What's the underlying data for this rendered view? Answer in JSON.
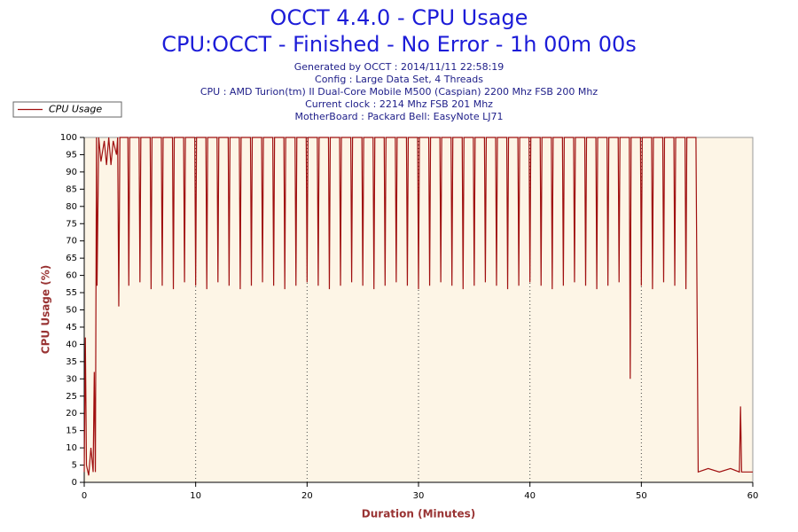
{
  "chart_data": {
    "type": "line",
    "title": "OCCT 4.4.0 - CPU Usage",
    "subtitle": "CPU:OCCT - Finished - No Error - 1h 00m 00s",
    "info": [
      "Generated by OCCT : 2014/11/11 22:58:19",
      "Config : Large Data Set, 4 Threads",
      "CPU : AMD Turion(tm) II Dual-Core Mobile M500 (Caspian) 2200 Mhz FSB 200 Mhz",
      "Current clock : 2214 Mhz FSB 201 Mhz",
      "MotherBoard : Packard Bell: EasyNote LJ71"
    ],
    "x_label": "Duration (Minutes)",
    "y_label": "CPU Usage (%)",
    "xlim": [
      0,
      60
    ],
    "ylim": [
      0,
      100
    ],
    "xticks": [
      0,
      10,
      20,
      30,
      40,
      50,
      60
    ],
    "yticks": [
      0,
      5,
      10,
      15,
      20,
      25,
      30,
      35,
      40,
      45,
      50,
      55,
      60,
      65,
      70,
      75,
      80,
      85,
      90,
      95,
      100
    ],
    "grid": "x",
    "legend": "top-left",
    "x": [
      0,
      0.1,
      0.2,
      0.4,
      0.6,
      0.8,
      0.9,
      1,
      1.1,
      1.15,
      1.3,
      1.5,
      1.8,
      2,
      2.2,
      2.4,
      2.6,
      2.9,
      3,
      3.1,
      3.2,
      3.92,
      4,
      4.08,
      4.92,
      5,
      5.08,
      5.92,
      6,
      6.08,
      6.92,
      7,
      7.08,
      7.92,
      8,
      8.08,
      8.92,
      9,
      9.08,
      9.92,
      10,
      10.08,
      10.92,
      11,
      11.08,
      11.92,
      12,
      12.08,
      12.92,
      13,
      13.08,
      13.92,
      14,
      14.08,
      14.92,
      15,
      15.08,
      15.92,
      16,
      16.08,
      16.92,
      17,
      17.08,
      17.92,
      18,
      18.08,
      18.92,
      19,
      19.08,
      19.92,
      20,
      20.08,
      20.92,
      21,
      21.08,
      21.92,
      22,
      22.08,
      22.92,
      23,
      23.08,
      23.92,
      24,
      24.08,
      24.92,
      25,
      25.08,
      25.92,
      26,
      26.08,
      26.92,
      27,
      27.08,
      27.92,
      28,
      28.08,
      28.92,
      29,
      29.08,
      29.92,
      30,
      30.08,
      30.92,
      31,
      31.08,
      31.92,
      32,
      32.08,
      32.92,
      33,
      33.08,
      33.92,
      34,
      34.08,
      34.92,
      35,
      35.08,
      35.92,
      36,
      36.08,
      36.92,
      37,
      37.08,
      37.92,
      38,
      38.08,
      38.92,
      39,
      39.08,
      39.92,
      40,
      40.08,
      40.92,
      41,
      41.08,
      41.92,
      42,
      42.08,
      42.92,
      43,
      43.08,
      43.92,
      44,
      44.08,
      44.92,
      45,
      45.08,
      45.92,
      46,
      46.08,
      46.92,
      47,
      47.08,
      47.92,
      48,
      48.08,
      48.92,
      49,
      49.08,
      49.92,
      50,
      50.08,
      50.92,
      51,
      51.08,
      51.92,
      52,
      52.08,
      52.92,
      53,
      53.08,
      53.92,
      54,
      54.08,
      54.9,
      55,
      55.1,
      56,
      57,
      58,
      58.8,
      58.9,
      59,
      60
    ],
    "series": [
      {
        "name": "CPU Usage",
        "color": "#a01010",
        "values": [
          3,
          42,
          5,
          2,
          10,
          3,
          32,
          3,
          100,
          57,
          100,
          93,
          99,
          92,
          100,
          92,
          99,
          95,
          100,
          51,
          100,
          100,
          57,
          100,
          100,
          58,
          100,
          100,
          56,
          100,
          100,
          57,
          100,
          100,
          56,
          100,
          100,
          58,
          100,
          100,
          57,
          100,
          100,
          56,
          100,
          100,
          58,
          100,
          100,
          57,
          100,
          100,
          56,
          100,
          100,
          57,
          100,
          100,
          58,
          100,
          100,
          57,
          100,
          100,
          56,
          100,
          100,
          57,
          100,
          100,
          58,
          100,
          100,
          57,
          100,
          100,
          56,
          100,
          100,
          57,
          100,
          100,
          58,
          100,
          100,
          57,
          100,
          100,
          56,
          100,
          100,
          57,
          100,
          100,
          58,
          100,
          100,
          57,
          100,
          100,
          56,
          100,
          100,
          57,
          100,
          100,
          58,
          100,
          100,
          57,
          100,
          100,
          56,
          100,
          100,
          57,
          100,
          100,
          58,
          100,
          100,
          57,
          100,
          100,
          56,
          100,
          100,
          57,
          100,
          100,
          58,
          100,
          100,
          57,
          100,
          100,
          56,
          100,
          100,
          57,
          100,
          100,
          58,
          100,
          100,
          57,
          100,
          100,
          56,
          100,
          100,
          57,
          100,
          100,
          58,
          100,
          100,
          30,
          100,
          100,
          57,
          100,
          100,
          56,
          100,
          100,
          58,
          100,
          100,
          57,
          100,
          100,
          56,
          100,
          100,
          52,
          3,
          4,
          3,
          4,
          3,
          22,
          3,
          3
        ]
      }
    ]
  }
}
